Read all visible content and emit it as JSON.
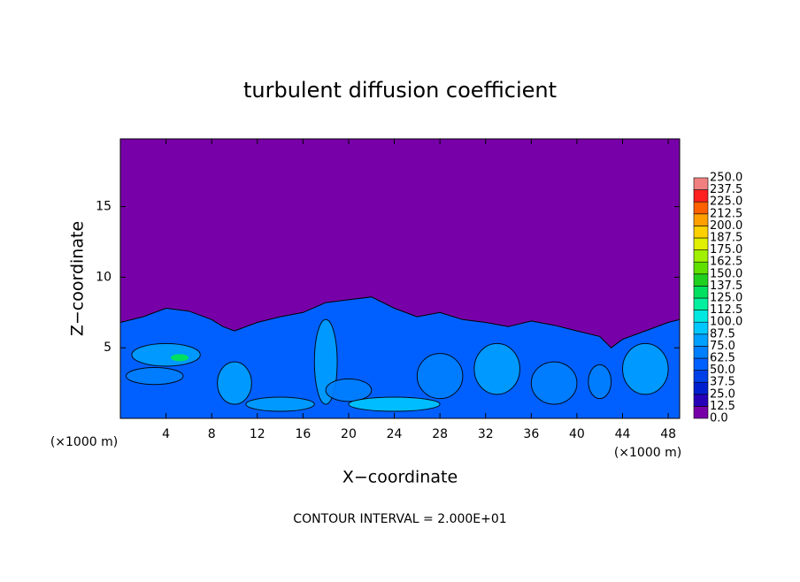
{
  "chart_data": {
    "type": "contour",
    "title": "turbulent diffusion coefficient",
    "x_label": "X−coordinate",
    "y_label": "Z−coordinate",
    "x_unit_label": "(×1000 m)",
    "y_unit_label": "(×1000 m)",
    "footer": "CONTOUR INTERVAL = 2.000E+01",
    "xlim": [
      0,
      49
    ],
    "ylim": [
      0,
      19.8
    ],
    "xticks": [
      4,
      8,
      12,
      16,
      20,
      24,
      28,
      32,
      36,
      40,
      44,
      48
    ],
    "yticks": [
      5,
      10,
      15
    ],
    "colorbar": {
      "levels": [
        {
          "value": 0,
          "label": "0.0"
        },
        {
          "value": 12.5,
          "label": "12.5"
        },
        {
          "value": 25,
          "label": "25.0"
        },
        {
          "value": 37.5,
          "label": "37.5"
        },
        {
          "value": 50,
          "label": "50.0"
        },
        {
          "value": 62.5,
          "label": "62.5"
        },
        {
          "value": 75,
          "label": "75.0"
        },
        {
          "value": 87.5,
          "label": "87.5"
        },
        {
          "value": 100,
          "label": "100.0"
        },
        {
          "value": 112.5,
          "label": "112.5"
        },
        {
          "value": 125,
          "label": "125.0"
        },
        {
          "value": 137.5,
          "label": "137.5"
        },
        {
          "value": 150,
          "label": "150.0"
        },
        {
          "value": 162.5,
          "label": "162.5"
        },
        {
          "value": 175,
          "label": "175.0"
        },
        {
          "value": 187.5,
          "label": "187.5"
        },
        {
          "value": 200,
          "label": "200.0"
        },
        {
          "value": 212.5,
          "label": "212.5"
        },
        {
          "value": 225,
          "label": "225.0"
        },
        {
          "value": 237.5,
          "label": "237.5"
        },
        {
          "value": 250,
          "label": "250.0"
        }
      ],
      "colors": [
        "#7800a8",
        "#2800b8",
        "#0020d0",
        "#0040e8",
        "#0060ff",
        "#0080ff",
        "#00a0ff",
        "#00c8ff",
        "#00e8e0",
        "#00f0a0",
        "#00e060",
        "#20d020",
        "#60e000",
        "#a0f000",
        "#e0f000",
        "#ffd000",
        "#ffa000",
        "#ff6000",
        "#ff2020",
        "#f08080"
      ]
    }
  }
}
